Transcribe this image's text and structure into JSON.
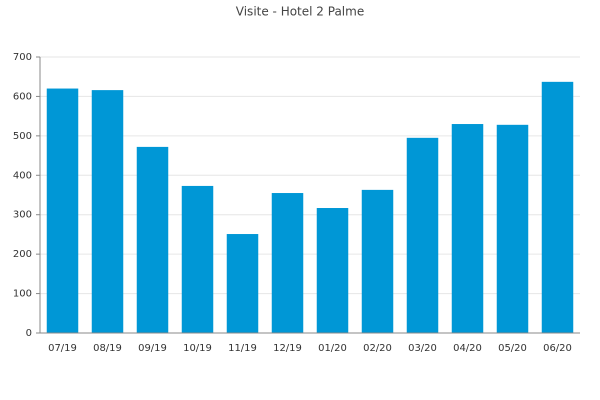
{
  "chart_data": {
    "type": "bar",
    "title": "Visite - Hotel 2 Palme",
    "categories": [
      "07/19",
      "08/19",
      "09/19",
      "10/19",
      "11/19",
      "12/19",
      "01/20",
      "02/20",
      "03/20",
      "04/20",
      "05/20",
      "06/20"
    ],
    "values": [
      620,
      616,
      472,
      373,
      251,
      355,
      317,
      363,
      495,
      530,
      528,
      637
    ],
    "color": "#0097d6",
    "ylim": [
      0,
      700
    ],
    "yticks": [
      0,
      100,
      200,
      300,
      400,
      500,
      600,
      700
    ],
    "grid": true
  }
}
